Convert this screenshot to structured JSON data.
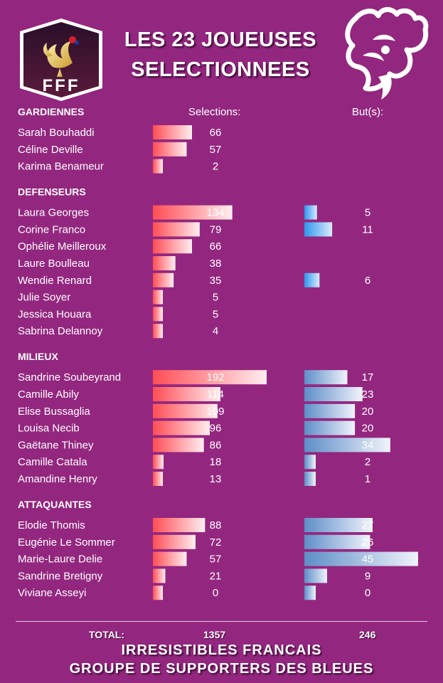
{
  "title_line1": "LES 23 JOUEUSES",
  "title_line2": "SELECTIONNEES",
  "logo_text": "FFF",
  "colors": {
    "background": "#93277f",
    "selections_bar": "#ff5a5a",
    "goals_bar": "#3fa0f0",
    "goals_bar_muted": "#6f9fd1"
  },
  "chart_data": {
    "type": "bar",
    "column_headers": {
      "selections": "Selections:",
      "goals": "But(s):"
    },
    "groups": [
      {
        "name": "GARDIENNES",
        "players": [
          {
            "name": "Sarah Bouhaddi",
            "selections": 66,
            "goals": null
          },
          {
            "name": "Céline Deville",
            "selections": 57,
            "goals": null
          },
          {
            "name": "Karima Benameur",
            "selections": 2,
            "goals": null
          }
        ]
      },
      {
        "name": "DEFENSEURS",
        "players": [
          {
            "name": "Laura Georges",
            "selections": 134,
            "goals": 5
          },
          {
            "name": "Corine Franco",
            "selections": 79,
            "goals": 11
          },
          {
            "name": "Ophélie Meilleroux",
            "selections": 66,
            "goals": null
          },
          {
            "name": "Laure Boulleau",
            "selections": 38,
            "goals": null
          },
          {
            "name": "Wendie Renard",
            "selections": 35,
            "goals": 6
          },
          {
            "name": "Julie Soyer",
            "selections": 5,
            "goals": null
          },
          {
            "name": "Jessica Houara",
            "selections": 5,
            "goals": null
          },
          {
            "name": "Sabrina Delannoy",
            "selections": 4,
            "goals": null
          }
        ]
      },
      {
        "name": "MILIEUX",
        "players": [
          {
            "name": "Sandrine Soubeyrand",
            "selections": 192,
            "goals": 17
          },
          {
            "name": "Camille Abily",
            "selections": 114,
            "goals": 23
          },
          {
            "name": "Elise Bussaglia",
            "selections": 109,
            "goals": 20
          },
          {
            "name": "Louisa Necib",
            "selections": 96,
            "goals": 20
          },
          {
            "name": "Gaëtane Thiney",
            "selections": 86,
            "goals": 34
          },
          {
            "name": "Camille Catala",
            "selections": 18,
            "goals": 2
          },
          {
            "name": "Amandine Henry",
            "selections": 13,
            "goals": 1
          }
        ]
      },
      {
        "name": "ATTAQUANTES",
        "players": [
          {
            "name": "Elodie Thomis",
            "selections": 88,
            "goals": 27
          },
          {
            "name": "Eugénie Le Sommer",
            "selections": 72,
            "goals": 26
          },
          {
            "name": "Marie-Laure Delie",
            "selections": 57,
            "goals": 45
          },
          {
            "name": "Sandrine Bretigny",
            "selections": 21,
            "goals": 9
          },
          {
            "name": "Viviane Asseyi",
            "selections": 0,
            "goals": 0
          }
        ]
      }
    ],
    "totals": {
      "label": "TOTAL:",
      "selections": "1357",
      "goals": "246"
    }
  },
  "footer_line1": "IRRESISTIBLES FRANCAIS",
  "footer_line2": "GROUPE DE SUPPORTERS DES BLEUES"
}
